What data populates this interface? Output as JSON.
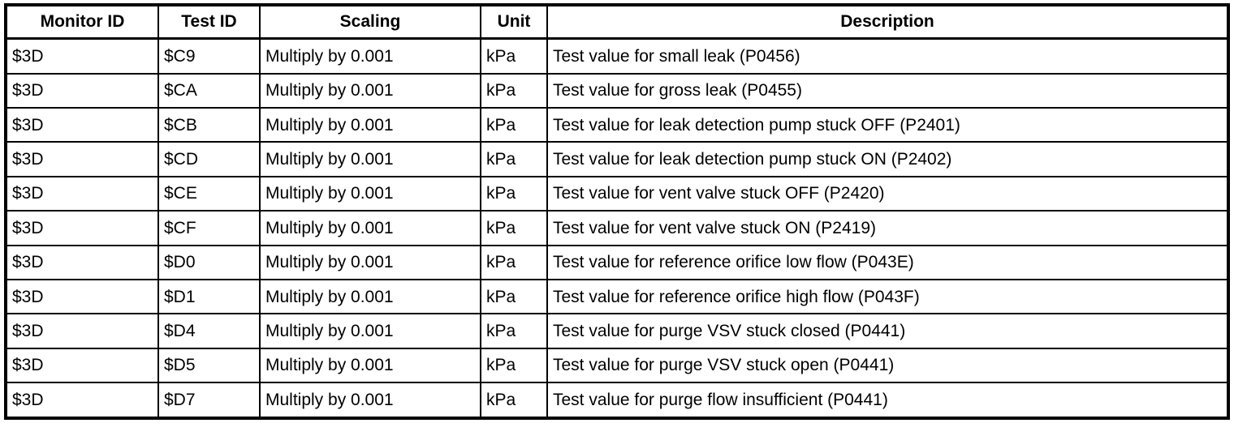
{
  "table": {
    "columns": [
      "Monitor ID",
      "Test ID",
      "Scaling",
      "Unit",
      "Description"
    ],
    "rows": [
      [
        "$3D",
        "$C9",
        "Multiply by 0.001",
        "kPa",
        "Test value for small leak (P0456)"
      ],
      [
        "$3D",
        "$CA",
        "Multiply by 0.001",
        "kPa",
        "Test value for gross leak (P0455)"
      ],
      [
        "$3D",
        "$CB",
        "Multiply by 0.001",
        "kPa",
        "Test value for leak detection pump stuck OFF (P2401)"
      ],
      [
        "$3D",
        "$CD",
        "Multiply by 0.001",
        "kPa",
        "Test value for leak detection pump stuck ON (P2402)"
      ],
      [
        "$3D",
        "$CE",
        "Multiply by 0.001",
        "kPa",
        "Test value for vent valve stuck OFF (P2420)"
      ],
      [
        "$3D",
        "$CF",
        "Multiply by 0.001",
        "kPa",
        "Test value for vent valve stuck ON (P2419)"
      ],
      [
        "$3D",
        "$D0",
        "Multiply by 0.001",
        "kPa",
        "Test value for reference orifice low flow (P043E)"
      ],
      [
        "$3D",
        "$D1",
        "Multiply by 0.001",
        "kPa",
        "Test value for reference orifice high flow (P043F)"
      ],
      [
        "$3D",
        "$D4",
        "Multiply by 0.001",
        "kPa",
        "Test value for purge VSV stuck closed (P0441)"
      ],
      [
        "$3D",
        "$D5",
        "Multiply by 0.001",
        "kPa",
        "Test value for purge VSV stuck open (P0441)"
      ],
      [
        "$3D",
        "$D7",
        "Multiply by 0.001",
        "kPa",
        "Test value for purge flow insufficient (P0441)"
      ]
    ],
    "border_color": "#000000",
    "background_color": "#ffffff",
    "text_color": "#000000"
  }
}
